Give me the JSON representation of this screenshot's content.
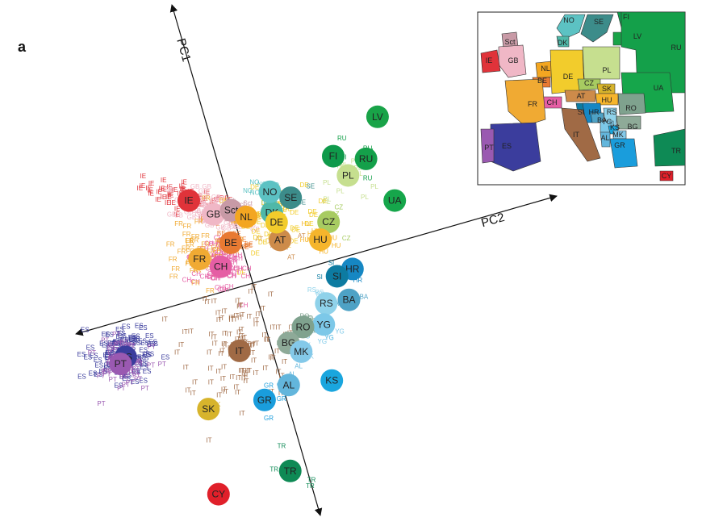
{
  "panel_letter": "a",
  "chart_data": {
    "type": "scatter",
    "axes": {
      "pc1": "PC1",
      "pc2": "PC2"
    },
    "colors": {
      "IE": "#e0333a",
      "GB": "#f0b7c6",
      "Sct": "#c89aa6",
      "NL": "#f3a621",
      "DK": "#4fb8a8",
      "NO": "#5cc2c3",
      "SE": "#3c8c8a",
      "FI": "#0f9a4b",
      "LV": "#19a348",
      "RU": "#14a04a",
      "UA": "#16a64b",
      "PL": "#c6df8f",
      "CZ": "#a7cb61",
      "HU": "#f5b52c",
      "SK": "#d7b42c",
      "AT": "#cd8b4a",
      "DE": "#f2cc2c",
      "BE": "#e87a32",
      "CH": "#e55ea4",
      "FR": "#f0aa33",
      "ES": "#3b3d9d",
      "PT": "#9a59b1",
      "IT": "#a06a45",
      "HR": "#1687c3",
      "SI": "#0d7ba1",
      "BA": "#4ea2c5",
      "RS": "#8fd2ea",
      "YG": "#7cc8e8",
      "RO": "#7fa28e",
      "BG": "#8eaa98",
      "MK": "#84c9e9",
      "KS": "#1aa6de",
      "AL": "#63b6dc",
      "GR": "#1a9ddc",
      "TR": "#0e8a55",
      "CY": "#e0202a"
    },
    "populations": [
      {
        "code": "IE",
        "x": -2.4,
        "y": 1.35,
        "sd": [
          0.75,
          0.22
        ],
        "n": 55
      },
      {
        "code": "GB",
        "x": -1.55,
        "y": 1.15,
        "sd": [
          0.65,
          0.28
        ],
        "n": 70
      },
      {
        "code": "Sct",
        "x": -1.05,
        "y": 1.42,
        "sd": [
          0.3,
          0.2
        ],
        "n": 15
      },
      {
        "code": "NL",
        "x": -0.55,
        "y": 1.35,
        "sd": [
          0.3,
          0.25
        ],
        "n": 12
      },
      {
        "code": "DK",
        "x": 0.18,
        "y": 1.7,
        "sd": [
          0.25,
          0.2
        ],
        "n": 4
      },
      {
        "code": "NO",
        "x": -0.05,
        "y": 2.3,
        "sd": [
          0.3,
          0.25
        ],
        "n": 6
      },
      {
        "code": "SE",
        "x": 0.62,
        "y": 2.3,
        "sd": [
          0.35,
          0.3
        ],
        "n": 9
      },
      {
        "code": "FI",
        "x": 1.55,
        "y": 3.9,
        "sd": [
          0.2,
          0.2
        ],
        "n": 1
      },
      {
        "code": "LV",
        "x": 2.55,
        "y": 5.45,
        "sd": [
          0.2,
          0.2
        ],
        "n": 1
      },
      {
        "code": "RU",
        "x": 2.55,
        "y": 4.1,
        "sd": [
          0.25,
          0.3
        ],
        "n": 5
      },
      {
        "code": "UA",
        "x": 3.75,
        "y": 3.1,
        "sd": [
          0.2,
          0.2
        ],
        "n": 1
      },
      {
        "code": "PL",
        "x": 2.15,
        "y": 3.45,
        "sd": [
          0.4,
          0.45
        ],
        "n": 14
      },
      {
        "code": "CZ",
        "x": 1.95,
        "y": 1.9,
        "sd": [
          0.25,
          0.2
        ],
        "n": 6
      },
      {
        "code": "HU",
        "x": 1.85,
        "y": 1.3,
        "sd": [
          0.3,
          0.25
        ],
        "n": 12
      },
      {
        "code": "SK",
        "x": -0.1,
        "y": -4.7,
        "sd": [
          0.2,
          0.2
        ],
        "n": 1
      },
      {
        "code": "AT",
        "x": 0.65,
        "y": 0.95,
        "sd": [
          0.3,
          0.3
        ],
        "n": 10
      },
      {
        "code": "DE",
        "x": 0.4,
        "y": 1.45,
        "sd": [
          0.6,
          0.55
        ],
        "n": 50
      },
      {
        "code": "BE",
        "x": -0.8,
        "y": 0.45,
        "sd": [
          0.35,
          0.3
        ],
        "n": 18
      },
      {
        "code": "CH",
        "x": -0.9,
        "y": -0.35,
        "sd": [
          0.45,
          0.4
        ],
        "n": 70
      },
      {
        "code": "FR",
        "x": -1.6,
        "y": -0.3,
        "sd": [
          0.65,
          0.55
        ],
        "n": 50
      },
      {
        "code": "ES",
        "x": -3.0,
        "y": -3.85,
        "sd": [
          0.5,
          0.4
        ],
        "n": 110
      },
      {
        "code": "PT",
        "x": -3.1,
        "y": -4.1,
        "sd": [
          0.4,
          0.35
        ],
        "n": 70
      },
      {
        "code": "IT",
        "x": 0.35,
        "y": -2.7,
        "sd": [
          0.85,
          1.05
        ],
        "n": 110
      },
      {
        "code": "HR",
        "x": 3.05,
        "y": 0.7,
        "sd": [
          0.25,
          0.25
        ],
        "n": 6
      },
      {
        "code": "SI",
        "x": 2.65,
        "y": 0.35,
        "sd": [
          0.2,
          0.2
        ],
        "n": 4
      },
      {
        "code": "BA",
        "x": 3.2,
        "y": -0.25,
        "sd": [
          0.2,
          0.2
        ],
        "n": 6
      },
      {
        "code": "RS",
        "x": 2.55,
        "y": -0.55,
        "sd": [
          0.2,
          0.2
        ],
        "n": 3
      },
      {
        "code": "YG",
        "x": 2.65,
        "y": -1.2,
        "sd": [
          0.3,
          0.3
        ],
        "n": 12
      },
      {
        "code": "RO",
        "x": 2.05,
        "y": -1.45,
        "sd": [
          0.25,
          0.25
        ],
        "n": 10
      },
      {
        "code": "BG",
        "x": 1.75,
        "y": -2.05,
        "sd": [
          0.2,
          0.2
        ],
        "n": 3
      },
      {
        "code": "MK",
        "x": 2.2,
        "y": -2.2,
        "sd": [
          0.25,
          0.25
        ],
        "n": 8
      },
      {
        "code": "KS",
        "x": 3.35,
        "y": -2.8,
        "sd": [
          0.2,
          0.2
        ],
        "n": 1
      },
      {
        "code": "AL",
        "x": 2.1,
        "y": -3.3,
        "sd": [
          0.25,
          0.25
        ],
        "n": 4
      },
      {
        "code": "GR",
        "x": 1.5,
        "y": -3.95,
        "sd": [
          0.25,
          0.3
        ],
        "n": 5
      },
      {
        "code": "TR",
        "x": 2.85,
        "y": -5.85,
        "sd": [
          0.55,
          0.35
        ],
        "n": 4
      },
      {
        "code": "CY",
        "x": 0.9,
        "y": -7.15,
        "sd": [
          0.15,
          0.15
        ],
        "n": 1
      }
    ]
  },
  "inset_map": {
    "labels": [
      "NO",
      "SE",
      "FI",
      "DK",
      "Sct",
      "GB",
      "IE",
      "NL",
      "BE",
      "DE",
      "PL",
      "LV",
      "RU",
      "UA",
      "CZ",
      "SK",
      "HU",
      "AT",
      "CH",
      "FR",
      "RO",
      "SI",
      "HR",
      "BA",
      "RS",
      "YG",
      "BG",
      "KS",
      "MK",
      "AL",
      "GR",
      "IT",
      "ES",
      "PT",
      "TR",
      "CY"
    ]
  }
}
